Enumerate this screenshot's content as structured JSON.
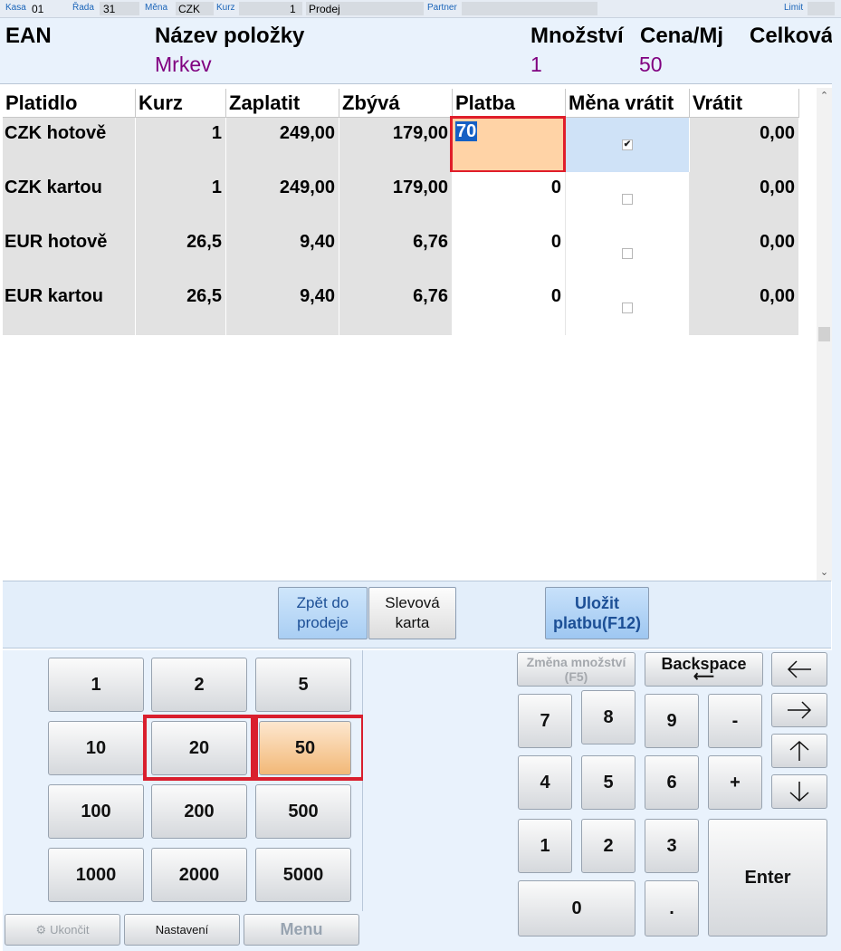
{
  "topbar": {
    "kasa_label": "Kasa",
    "kasa_value": "01",
    "rada_label": "Řada",
    "rada_value": "31",
    "mena_label": "Měna",
    "mena_value": "CZK",
    "kurz_label": "Kurz",
    "kurz_value": "1",
    "mode": "Prodej",
    "partner_label": "Partner",
    "limit_label": "Limit"
  },
  "header": {
    "ean": "EAN",
    "nazev": "Název položky",
    "mnozstvi": "Množství",
    "cena": "Cena/Mj",
    "celkova": "Celková",
    "item_name": "Mrkev",
    "item_qty": "1",
    "item_price": "50"
  },
  "table": {
    "columns": [
      "Platidlo",
      "Kurz",
      "Zaplatit",
      "Zbývá",
      "Platba",
      "Měna vrátit",
      "Vrátit"
    ],
    "rows": [
      {
        "platidlo": "CZK hotově",
        "kurz": "1",
        "zaplatit": "249,00",
        "zbyva": "179,00",
        "platba": "70",
        "mena_vratit": true,
        "vratit": "0,00"
      },
      {
        "platidlo": "CZK kartou",
        "kurz": "1",
        "zaplatit": "249,00",
        "zbyva": "179,00",
        "platba": "0",
        "mena_vratit": false,
        "vratit": "0,00"
      },
      {
        "platidlo": "EUR hotově",
        "kurz": "26,5",
        "zaplatit": "9,40",
        "zbyva": "6,76",
        "platba": "0",
        "mena_vratit": false,
        "vratit": "0,00"
      },
      {
        "platidlo": "EUR kartou",
        "kurz": "26,5",
        "zaplatit": "9,40",
        "zbyva": "6,76",
        "platba": "0",
        "mena_vratit": false,
        "vratit": "0,00"
      }
    ]
  },
  "buttons": {
    "zpet": "Zpět do prodeje",
    "slevova": "Slevová karta",
    "ulozit": "Uložit platbu(F12)"
  },
  "quick_amounts": [
    "1",
    "2",
    "5",
    "10",
    "20",
    "50",
    "100",
    "200",
    "500",
    "1000",
    "2000",
    "5000"
  ],
  "bottom": {
    "ukoncit": "Ukončit",
    "nastaveni": "Nastavení",
    "menu": "Menu"
  },
  "keypad": {
    "zmena": "Změna množství (F5)",
    "backspace": "Backspace",
    "keys": [
      "7",
      "8",
      "9",
      "-",
      "4",
      "5",
      "6",
      "+",
      "1",
      "2",
      "3",
      "0",
      "."
    ],
    "enter": "Enter"
  }
}
